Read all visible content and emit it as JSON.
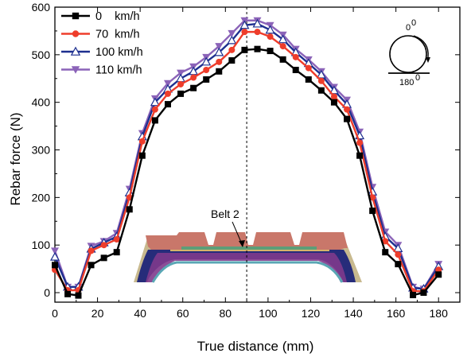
{
  "chart_data": {
    "type": "line",
    "xlabel": "True distance (mm)",
    "ylabel": "Rebar force (N)",
    "xlim": [
      0,
      190
    ],
    "ylim": [
      -20,
      600
    ],
    "xticks": [
      0,
      20,
      40,
      60,
      80,
      100,
      120,
      140,
      160,
      180
    ],
    "yticks": [
      0,
      100,
      200,
      300,
      400,
      500,
      600
    ],
    "grid": false,
    "legend_position": "top-left",
    "reference_line_x": 90,
    "x": [
      0,
      6,
      11,
      17,
      23,
      29,
      35,
      41,
      47,
      53,
      59,
      65,
      71,
      77,
      83,
      89,
      95,
      101,
      107,
      113,
      119,
      125,
      131,
      137,
      143,
      149,
      155,
      161,
      168,
      173,
      180
    ],
    "series": [
      {
        "name": "0    km/h",
        "color": "#000000",
        "marker": "square",
        "values": [
          58,
          -3,
          -6,
          58,
          73,
          85,
          175,
          288,
          362,
          396,
          418,
          430,
          448,
          465,
          488,
          510,
          512,
          508,
          490,
          468,
          448,
          425,
          400,
          365,
          288,
          172,
          85,
          60,
          -5,
          0,
          38
        ]
      },
      {
        "name": "70  km/h",
        "color": "#ee3d2b",
        "marker": "circle",
        "values": [
          48,
          5,
          5,
          88,
          100,
          112,
          200,
          318,
          385,
          418,
          438,
          452,
          468,
          485,
          510,
          548,
          548,
          538,
          518,
          495,
          472,
          445,
          412,
          385,
          315,
          200,
          108,
          80,
          3,
          3,
          48
        ]
      },
      {
        "name": "100 km/h",
        "color": "#1d2f8f",
        "marker": "triangle-up",
        "values": [
          75,
          12,
          12,
          92,
          105,
          118,
          210,
          328,
          400,
          428,
          450,
          465,
          485,
          505,
          530,
          562,
          565,
          552,
          532,
          505,
          482,
          458,
          425,
          396,
          330,
          212,
          118,
          93,
          10,
          8,
          55
        ]
      },
      {
        "name": "110 km/h",
        "color": "#8b63b8",
        "marker": "triangle-down",
        "values": [
          88,
          12,
          12,
          98,
          108,
          125,
          218,
          335,
          408,
          440,
          462,
          475,
          495,
          518,
          545,
          572,
          572,
          562,
          542,
          512,
          490,
          465,
          432,
          405,
          338,
          222,
          128,
          100,
          12,
          8,
          60
        ]
      }
    ],
    "annotations": {
      "belt_label": "Belt 2",
      "angle_top": "0",
      "angle_bottom": "180",
      "degree_mark": "0"
    }
  },
  "colors": {
    "tire_outer": "#c9776a",
    "tire_tread_edge": "#c8b98e",
    "tire_navy": "#262c7a",
    "tire_purple": "#7f3a8c",
    "tire_teal": "#5aa7b5",
    "tire_green": "#5c9e78",
    "tire_band": "#d7b46a"
  }
}
